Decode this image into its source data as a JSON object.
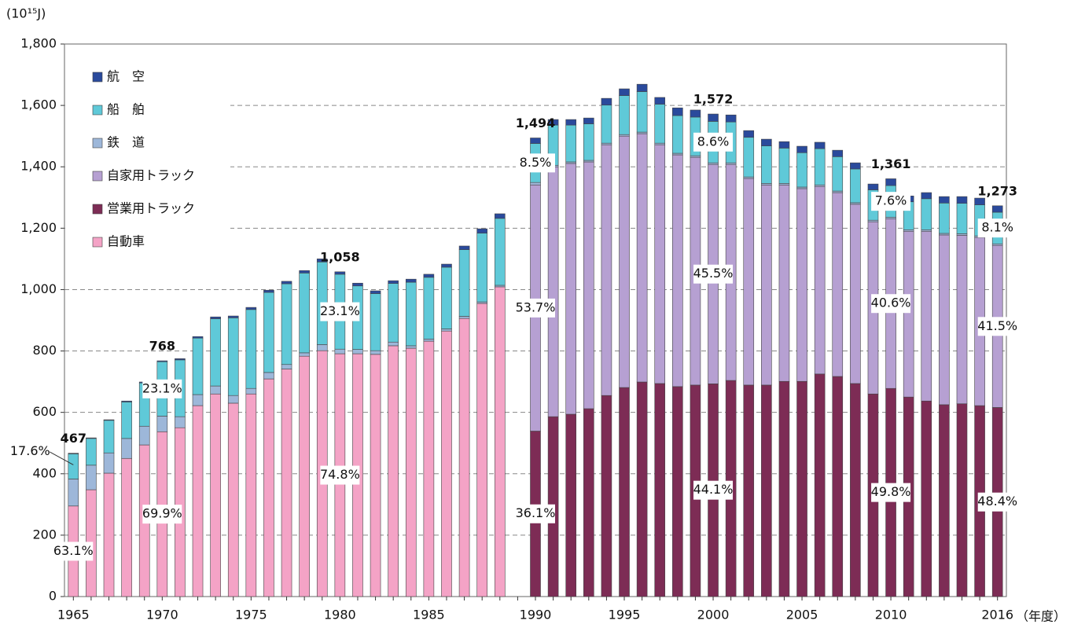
{
  "chart_data": {
    "type": "stacked-bar",
    "y_unit": "(10¹⁵J)",
    "x_unit": "（年度）",
    "categories": [
      "1965",
      null,
      null,
      null,
      null,
      "1970",
      null,
      null,
      null,
      null,
      "1975",
      null,
      null,
      null,
      null,
      "1980",
      null,
      null,
      null,
      null,
      "1985",
      null,
      null,
      null,
      null,
      null,
      "1990",
      null,
      null,
      null,
      null,
      "1995",
      null,
      null,
      null,
      null,
      "2000",
      null,
      null,
      null,
      null,
      "2005",
      null,
      null,
      null,
      null,
      "2010",
      null,
      null,
      null,
      null,
      null,
      "2016"
    ],
    "ylim": [
      0,
      1800
    ],
    "yticks": [
      0,
      200,
      400,
      600,
      800,
      {
        "value": 1000,
        "label": "1,000"
      },
      {
        "value": 1200,
        "label": "1,200"
      },
      {
        "value": 1400,
        "label": "1,400"
      },
      {
        "value": 1600,
        "label": "1,600"
      },
      {
        "value": 1800,
        "label": "1,800"
      }
    ],
    "grid": true,
    "legend": "upper left",
    "total_labels": [
      "467",
      null,
      null,
      null,
      null,
      "768",
      null,
      null,
      null,
      null,
      null,
      null,
      null,
      null,
      null,
      "1,058",
      null,
      null,
      null,
      null,
      null,
      null,
      null,
      null,
      null,
      null,
      "1,494",
      null,
      null,
      null,
      null,
      null,
      null,
      null,
      null,
      null,
      "1,572",
      null,
      null,
      null,
      null,
      null,
      null,
      null,
      null,
      null,
      "1,361",
      null,
      null,
      null,
      null,
      null,
      "1,273"
    ],
    "series": [
      {
        "name": "自動車",
        "color": "#f4a3c6",
        "values": [
          295,
          348,
          402,
          450,
          494,
          537,
          550,
          622,
          660,
          630,
          660,
          709,
          741,
          783,
          801,
          791,
          791,
          789,
          817,
          809,
          832,
          865,
          906,
          955,
          1009,
          null,
          null,
          null,
          null,
          null,
          null,
          null,
          null,
          null,
          null,
          null,
          null,
          null,
          null,
          null,
          null,
          null,
          null,
          null,
          null,
          null,
          null,
          null,
          null,
          null,
          null,
          null,
          null
        ],
        "value_labels": [
          "63.1%",
          null,
          null,
          null,
          null,
          "69.9%",
          null,
          null,
          null,
          null,
          null,
          null,
          null,
          null,
          null,
          "74.8%",
          null,
          null,
          null,
          null,
          null,
          null,
          null,
          null,
          null,
          null,
          null,
          null,
          null,
          null,
          null,
          null,
          null,
          null,
          null,
          null,
          null,
          null,
          null,
          null,
          null,
          null,
          null,
          null,
          null,
          null,
          null,
          null,
          null,
          null,
          null,
          null,
          null
        ]
      },
      {
        "name": "営業用トラック",
        "color": "#7d2c55",
        "values": [
          null,
          null,
          null,
          null,
          null,
          null,
          null,
          null,
          null,
          null,
          null,
          null,
          null,
          null,
          null,
          null,
          null,
          null,
          null,
          null,
          null,
          null,
          null,
          null,
          null,
          null,
          539,
          586,
          594,
          612,
          655,
          681,
          699,
          694,
          684,
          689,
          693,
          704,
          689,
          689,
          701,
          701,
          725,
          717,
          694,
          660,
          678,
          650,
          637,
          625,
          628,
          622,
          616
        ],
        "value_labels": [
          null,
          null,
          null,
          null,
          null,
          null,
          null,
          null,
          null,
          null,
          null,
          null,
          null,
          null,
          null,
          null,
          null,
          null,
          null,
          null,
          null,
          null,
          null,
          null,
          null,
          null,
          "36.1%",
          null,
          null,
          null,
          null,
          null,
          null,
          null,
          null,
          null,
          "44.1%",
          null,
          null,
          null,
          null,
          null,
          null,
          null,
          null,
          null,
          "49.8%",
          null,
          null,
          null,
          null,
          null,
          "48.4%"
        ]
      },
      {
        "name": "自家用トラック",
        "color": "#b6a0d2",
        "values": [
          null,
          null,
          null,
          null,
          null,
          null,
          null,
          null,
          null,
          null,
          null,
          null,
          null,
          null,
          null,
          null,
          null,
          null,
          null,
          null,
          null,
          null,
          null,
          null,
          null,
          null,
          802,
          814,
          817,
          804,
          817,
          819,
          809,
          778,
          755,
          742,
          715,
          704,
          673,
          652,
          640,
          628,
          611,
          599,
          584,
          561,
          553,
          540,
          553,
          553,
          549,
          548,
          528
        ],
        "value_labels": [
          null,
          null,
          null,
          null,
          null,
          null,
          null,
          null,
          null,
          null,
          null,
          null,
          null,
          null,
          null,
          null,
          null,
          null,
          null,
          null,
          null,
          null,
          null,
          null,
          null,
          null,
          "53.7%",
          null,
          null,
          null,
          null,
          null,
          null,
          null,
          null,
          null,
          "45.5%",
          null,
          null,
          null,
          null,
          null,
          null,
          null,
          null,
          null,
          "40.6%",
          null,
          null,
          null,
          null,
          null,
          "41.5%"
        ]
      },
      {
        "name": "鉄　道",
        "color": "#9db7d9",
        "values": [
          88,
          80,
          66,
          65,
          61,
          51,
          36,
          36,
          26,
          25,
          18,
          21,
          15,
          11,
          20,
          15,
          14,
          12,
          12,
          8,
          7,
          7,
          7,
          5,
          5,
          null,
          8,
          5,
          5,
          5,
          5,
          5,
          5,
          5,
          5,
          5,
          5,
          5,
          5,
          5,
          5,
          5,
          5,
          5,
          5,
          5,
          5,
          5,
          5,
          5,
          5,
          5,
          5
        ]
      },
      {
        "name": "船　舶",
        "color": "#5fc9d8",
        "values": [
          82,
          87,
          106,
          119,
          141,
          177,
          185,
          184,
          219,
          253,
          257,
          261,
          263,
          260,
          269,
          244,
          207,
          186,
          191,
          207,
          201,
          201,
          217,
          224,
          218,
          null,
          127,
          131,
          120,
          119,
          124,
          127,
          132,
          127,
          123,
          126,
          135,
          133,
          129,
          122,
          115,
          112,
          118,
          112,
          110,
          99,
          103,
          91,
          101,
          99,
          99,
          101,
          103
        ],
        "value_labels": [
          "17.6%",
          null,
          null,
          null,
          null,
          "23.1%",
          null,
          null,
          null,
          null,
          null,
          null,
          null,
          null,
          null,
          "23.1%",
          null,
          null,
          null,
          null,
          null,
          null,
          null,
          null,
          null,
          null,
          "8.5%",
          null,
          null,
          null,
          null,
          null,
          null,
          null,
          null,
          null,
          "8.6%",
          null,
          null,
          null,
          null,
          null,
          null,
          null,
          null,
          null,
          "7.6%",
          null,
          null,
          null,
          null,
          null,
          "8.1%"
        ]
      },
      {
        "name": "航　空",
        "color": "#2a4a9c",
        "values": [
          2,
          2,
          2,
          3,
          3,
          3,
          4,
          5,
          6,
          6,
          7,
          7,
          8,
          8,
          10,
          8,
          9,
          9,
          9,
          10,
          10,
          10,
          12,
          14,
          15,
          null,
          18,
          18,
          18,
          19,
          22,
          22,
          24,
          22,
          25,
          23,
          24,
          23,
          22,
          22,
          21,
          21,
          21,
          21,
          20,
          19,
          22,
          19,
          20,
          21,
          22,
          22,
          21
        ]
      }
    ]
  }
}
